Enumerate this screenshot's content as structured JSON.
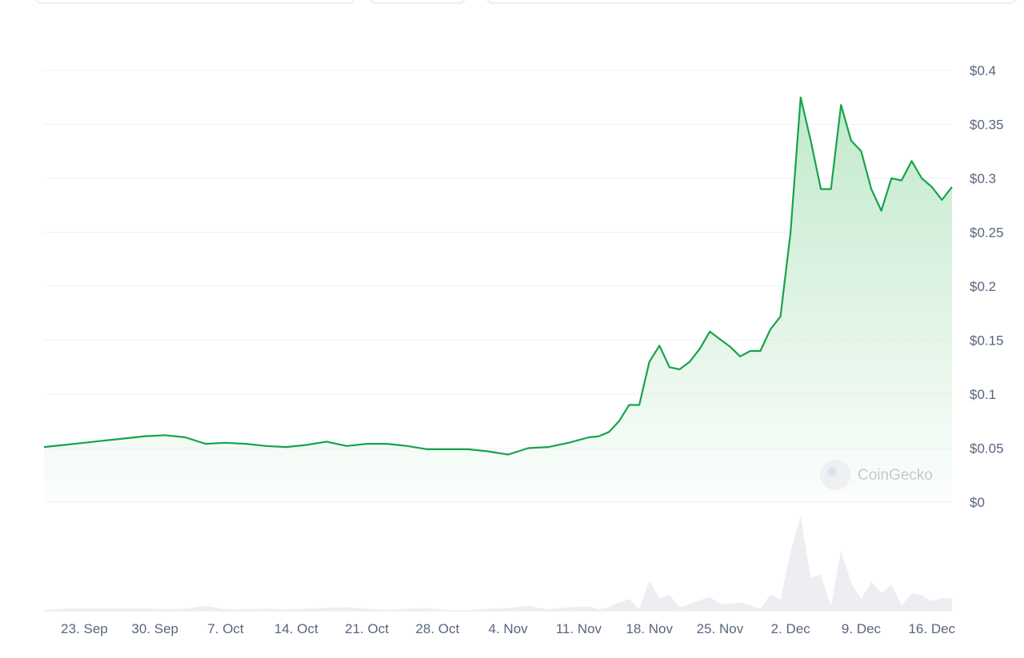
{
  "watermark": "CoinGecko",
  "colors": {
    "line": "#16a34a",
    "area_top": "#bfe8c9",
    "grid": "#eff2f5",
    "volume": "#eceef2",
    "text": "#58667e"
  },
  "chart_data": {
    "type": "line",
    "title": "",
    "xlabel": "",
    "ylabel": "",
    "y_tick_labels": [
      "$0",
      "$0.05",
      "$0.1",
      "$0.15",
      "$0.2",
      "$0.25",
      "$0.3",
      "$0.35",
      "$0.4"
    ],
    "ylim": [
      0,
      0.4
    ],
    "x_tick_labels": [
      "23. Sep",
      "30. Sep",
      "7. Oct",
      "14. Oct",
      "21. Oct",
      "28. Oct",
      "4. Nov",
      "11. Nov",
      "18. Nov",
      "25. Nov",
      "2. Dec",
      "9. Dec",
      "16. Dec"
    ],
    "xlim": [
      "2024-09-19",
      "2024-12-18"
    ],
    "legend": "none",
    "grid": true,
    "series": [
      {
        "points": [
          [
            "2024-09-19",
            0.051
          ],
          [
            "2024-09-21",
            0.053
          ],
          [
            "2024-09-23",
            0.055
          ],
          [
            "2024-09-25",
            0.057
          ],
          [
            "2024-09-27",
            0.059
          ],
          [
            "2024-09-29",
            0.061
          ],
          [
            "2024-10-01",
            0.062
          ],
          [
            "2024-10-03",
            0.06
          ],
          [
            "2024-10-05",
            0.054
          ],
          [
            "2024-10-07",
            0.055
          ],
          [
            "2024-10-09",
            0.054
          ],
          [
            "2024-10-11",
            0.052
          ],
          [
            "2024-10-13",
            0.051
          ],
          [
            "2024-10-15",
            0.053
          ],
          [
            "2024-10-17",
            0.056
          ],
          [
            "2024-10-19",
            0.052
          ],
          [
            "2024-10-21",
            0.054
          ],
          [
            "2024-10-23",
            0.054
          ],
          [
            "2024-10-25",
            0.052
          ],
          [
            "2024-10-27",
            0.049
          ],
          [
            "2024-10-29",
            0.049
          ],
          [
            "2024-10-31",
            0.049
          ],
          [
            "2024-11-02",
            0.047
          ],
          [
            "2024-11-04",
            0.044
          ],
          [
            "2024-11-06",
            0.05
          ],
          [
            "2024-11-08",
            0.051
          ],
          [
            "2024-11-10",
            0.055
          ],
          [
            "2024-11-12",
            0.06
          ],
          [
            "2024-11-13",
            0.061
          ],
          [
            "2024-11-14",
            0.065
          ],
          [
            "2024-11-15",
            0.075
          ],
          [
            "2024-11-16",
            0.09
          ],
          [
            "2024-11-17",
            0.09
          ],
          [
            "2024-11-18",
            0.13
          ],
          [
            "2024-11-19",
            0.145
          ],
          [
            "2024-11-20",
            0.125
          ],
          [
            "2024-11-21",
            0.123
          ],
          [
            "2024-11-22",
            0.13
          ],
          [
            "2024-11-23",
            0.142
          ],
          [
            "2024-11-24",
            0.158
          ],
          [
            "2024-11-25",
            0.151
          ],
          [
            "2024-11-26",
            0.144
          ],
          [
            "2024-11-27",
            0.135
          ],
          [
            "2024-11-28",
            0.14
          ],
          [
            "2024-11-29",
            0.14
          ],
          [
            "2024-11-30",
            0.16
          ],
          [
            "2024-12-01",
            0.172
          ],
          [
            "2024-12-02",
            0.25
          ],
          [
            "2024-12-03",
            0.375
          ],
          [
            "2024-12-04",
            0.335
          ],
          [
            "2024-12-05",
            0.29
          ],
          [
            "2024-12-06",
            0.29
          ],
          [
            "2024-12-07",
            0.368
          ],
          [
            "2024-12-08",
            0.335
          ],
          [
            "2024-12-09",
            0.325
          ],
          [
            "2024-12-10",
            0.29
          ],
          [
            "2024-12-11",
            0.27
          ],
          [
            "2024-12-12",
            0.3
          ],
          [
            "2024-12-13",
            0.298
          ],
          [
            "2024-12-14",
            0.316
          ],
          [
            "2024-12-15",
            0.3
          ],
          [
            "2024-12-16",
            0.292
          ],
          [
            "2024-12-17",
            0.28
          ],
          [
            "2024-12-18",
            0.292
          ]
        ]
      }
    ]
  }
}
